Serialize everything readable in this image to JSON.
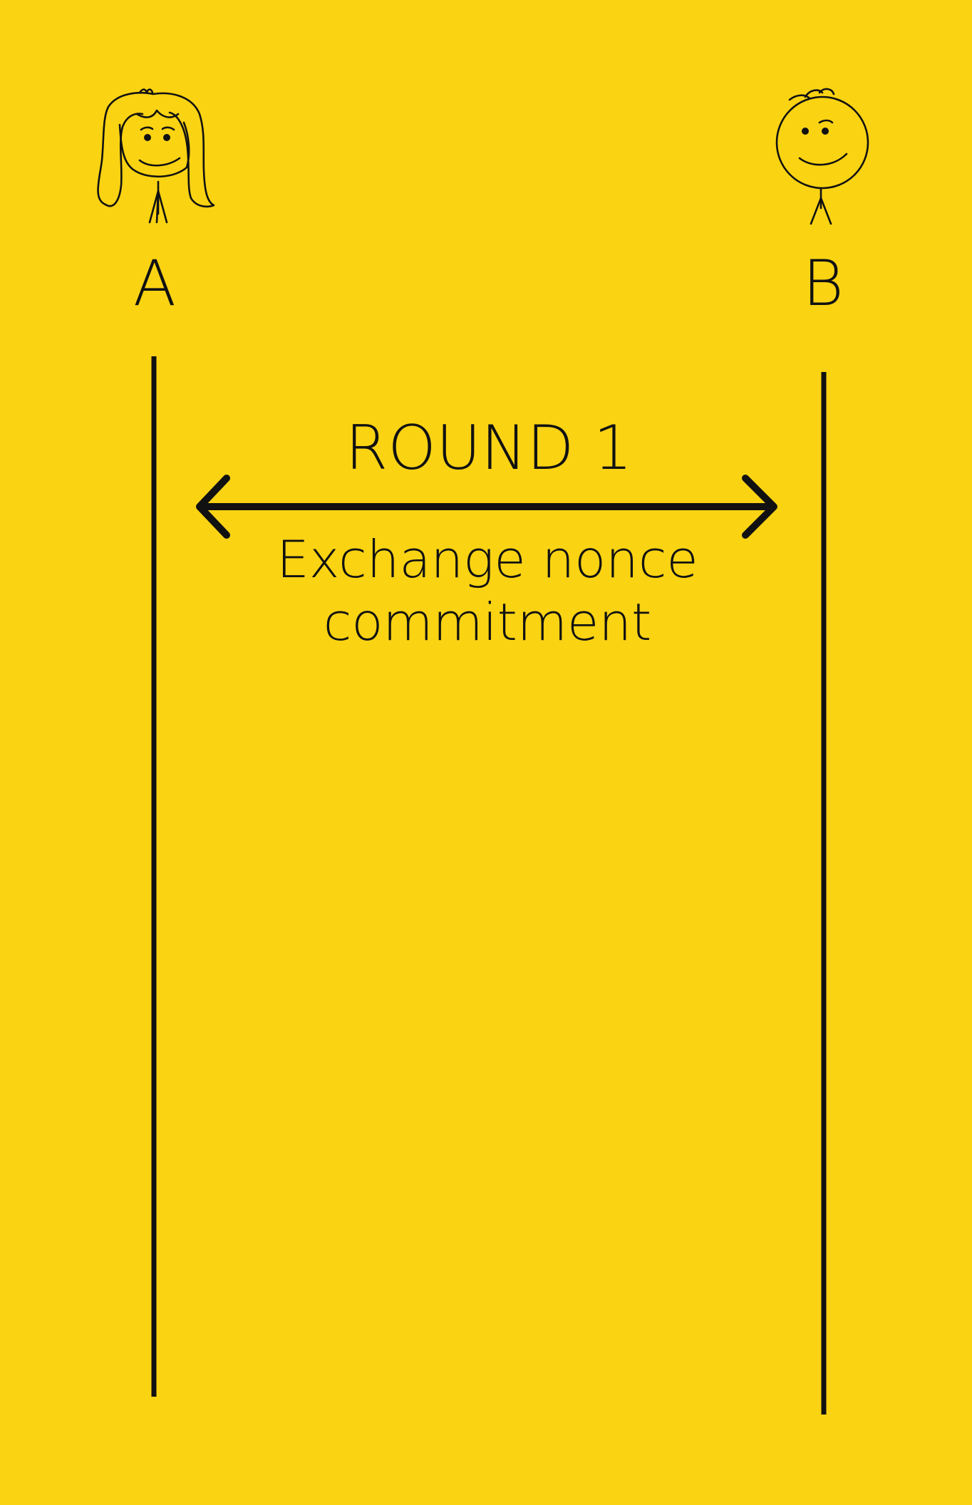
{
  "colors": {
    "background": "#FAD313",
    "ink": "#111111"
  },
  "participants": [
    {
      "label": "A",
      "icon": "woman-stick-figure-icon"
    },
    {
      "label": "B",
      "icon": "man-stick-figure-icon"
    }
  ],
  "round": {
    "title": "ROUND 1",
    "description_line1": "Exchange nonce",
    "description_line2": "commitment",
    "arrow": "double-headed-arrow-icon"
  }
}
